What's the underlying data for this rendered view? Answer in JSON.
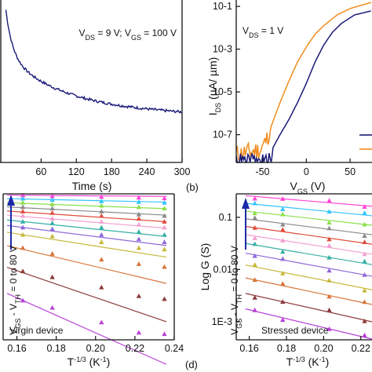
{
  "colors": {
    "navy": "#1a1a78",
    "orange": "#f08c1e",
    "axis": "#111111"
  },
  "chart_data": [
    {
      "id": "a",
      "type": "line",
      "annotation": "V_DS = 9 V; V_GS = 100 V",
      "xlabel": "Time (s)",
      "ylabel": "",
      "xlim": [
        -10,
        300
      ],
      "ylim": [
        0,
        1
      ],
      "xticks": [
        60,
        120,
        180,
        240,
        300
      ],
      "series": [
        {
          "color": "#1a1a78",
          "decay": {
            "a0": 0.05,
            "a1": 0.3,
            "tau1": 11,
            "a2": 0.35,
            "tau2": 90,
            "a3": 0.3,
            "slope": 0.0006
          }
        }
      ]
    },
    {
      "id": "b",
      "type": "line",
      "panel_label": "(b)",
      "annotation": "V_DS = 1 V",
      "xlabel": "V_GS (V)",
      "ylabel": "I_DS (µA/ µm)",
      "xlim": [
        -80,
        75
      ],
      "ylim_log": [
        -8.3,
        -0.7
      ],
      "xticks": [
        -50,
        0,
        50
      ],
      "yticks": [
        "10-1",
        "10-3",
        "10-5",
        "10-7"
      ],
      "series": [
        {
          "color": "#f08c1e",
          "points": [
            [
              -80,
              -7.9
            ],
            [
              -65,
              -7.8
            ],
            [
              -52,
              -7.7
            ],
            [
              -45,
              -7.2
            ],
            [
              -40,
              -6.6
            ],
            [
              -30,
              -5.5
            ],
            [
              -20,
              -4.5
            ],
            [
              -10,
              -3.6
            ],
            [
              0,
              -2.9
            ],
            [
              10,
              -2.3
            ],
            [
              20,
              -1.9
            ],
            [
              35,
              -1.4
            ],
            [
              50,
              -1.1
            ],
            [
              75,
              -0.8
            ]
          ]
        },
        {
          "color": "#1a1a78",
          "points": [
            [
              -80,
              -8.3
            ],
            [
              -40,
              -8.3
            ],
            [
              -38,
              -7.6
            ],
            [
              -30,
              -7.0
            ],
            [
              -20,
              -6.3
            ],
            [
              -10,
              -5.5
            ],
            [
              0,
              -4.6
            ],
            [
              10,
              -3.6
            ],
            [
              20,
              -2.8
            ],
            [
              30,
              -2.2
            ],
            [
              40,
              -1.8
            ],
            [
              55,
              -1.4
            ],
            [
              75,
              -1.2
            ]
          ]
        }
      ],
      "legend": {
        "placement": "bottom-right",
        "entries": [
          "",
          ""
        ]
      }
    },
    {
      "id": "c",
      "type": "scatter",
      "annotation": "Virgin device",
      "arrow_label": "V_GS - V_TH = 0 to 80 V",
      "xlabel": "T^-1/3 (K^-1)",
      "ylabel": "",
      "xlim": [
        0.153,
        0.24
      ],
      "ylim": [
        0,
        1
      ],
      "xticks": [
        0.16,
        0.18,
        0.2,
        0.22,
        0.24
      ],
      "x": [
        0.163,
        0.178,
        0.203,
        0.222,
        0.235
      ],
      "series": [
        {
          "color": "#ff44d6",
          "y0": 0.99,
          "slope": -0.1,
          "pts": [
            0.99,
            0.985,
            0.98,
            0.975,
            0.97
          ]
        },
        {
          "color": "#34c4ff",
          "y0": 0.965,
          "slope": -0.3,
          "pts": [
            0.968,
            0.96,
            0.95,
            0.945,
            0.94
          ]
        },
        {
          "color": "#8be04a",
          "y0": 0.935,
          "slope": -0.5,
          "pts": [
            0.94,
            0.93,
            0.92,
            0.91,
            0.9
          ]
        },
        {
          "color": "#8a8a8a",
          "y0": 0.905,
          "slope": -0.7,
          "pts": [
            0.91,
            0.9,
            0.88,
            0.86,
            0.85
          ]
        },
        {
          "color": "#e04b3a",
          "y0": 0.875,
          "slope": -0.9,
          "pts": [
            0.88,
            0.87,
            0.85,
            0.83,
            0.81
          ]
        },
        {
          "color": "#f2a0d0",
          "y0": 0.845,
          "slope": -1.1,
          "pts": [
            0.85,
            0.83,
            0.81,
            0.79,
            0.77
          ]
        },
        {
          "color": "#36b0a6",
          "y0": 0.81,
          "slope": -1.4,
          "pts": [
            0.81,
            0.8,
            0.77,
            0.74,
            0.72
          ]
        },
        {
          "color": "#8f6ad8",
          "y0": 0.77,
          "slope": -1.7,
          "pts": [
            0.77,
            0.76,
            0.72,
            0.69,
            0.67
          ]
        },
        {
          "color": "#c7b83a",
          "y0": 0.72,
          "slope": -2.1,
          "pts": [
            0.72,
            0.71,
            0.67,
            0.63,
            0.62
          ]
        },
        {
          "color": "#d8753a",
          "y0": 0.62,
          "slope": -3.2,
          "pts": [
            0.63,
            0.59,
            0.55,
            0.52,
            0.5
          ]
        },
        {
          "color": "#8c3a3a",
          "y0": 0.46,
          "slope": -4.6,
          "pts": [
            0.47,
            0.43,
            0.36,
            0.3,
            0.28
          ]
        },
        {
          "color": "#b740d4",
          "y0": 0.27,
          "slope": -6.0,
          "pts": [
            0.27,
            0.22,
            0.12,
            0.05,
            0.04
          ]
        }
      ]
    },
    {
      "id": "d",
      "type": "scatter",
      "panel_label": "(d)",
      "annotation": "Stressed device",
      "arrow_label": "V_GS - V_TH = 0 to 80 V",
      "xlabel": "T^-1/3 (K^-1)",
      "ylabel": "Log G (S)",
      "xlim": [
        0.153,
        0.226
      ],
      "ylim_log": [
        -3.35,
        -0.55
      ],
      "xticks": [
        0.16,
        0.18,
        0.2,
        0.22
      ],
      "yticks": [
        "0.1",
        "0.01",
        "1E-3"
      ],
      "x": [
        0.163,
        0.178,
        0.203,
        0.222
      ],
      "series": [
        {
          "color": "#ff44d6",
          "y0": -0.6,
          "slope": -3.0
        },
        {
          "color": "#34c4ff",
          "y0": -0.75,
          "slope": -3.5
        },
        {
          "color": "#8be04a",
          "y0": -0.9,
          "slope": -4.0
        },
        {
          "color": "#8a8a8a",
          "y0": -1.05,
          "slope": -4.5
        },
        {
          "color": "#e04b3a",
          "y0": -1.2,
          "slope": -5.0
        },
        {
          "color": "#f2a0d0",
          "y0": -1.36,
          "slope": -5.5
        },
        {
          "color": "#36b0a6",
          "y0": -1.53,
          "slope": -6.0
        },
        {
          "color": "#8f6ad8",
          "y0": -1.72,
          "slope": -6.5
        },
        {
          "color": "#c7b83a",
          "y0": -1.95,
          "slope": -7.0
        },
        {
          "color": "#d8753a",
          "y0": -2.2,
          "slope": -7.5
        },
        {
          "color": "#8c3a3a",
          "y0": -2.5,
          "slope": -8.0
        },
        {
          "color": "#b740d4",
          "y0": -2.8,
          "slope": -8.5
        }
      ]
    }
  ]
}
